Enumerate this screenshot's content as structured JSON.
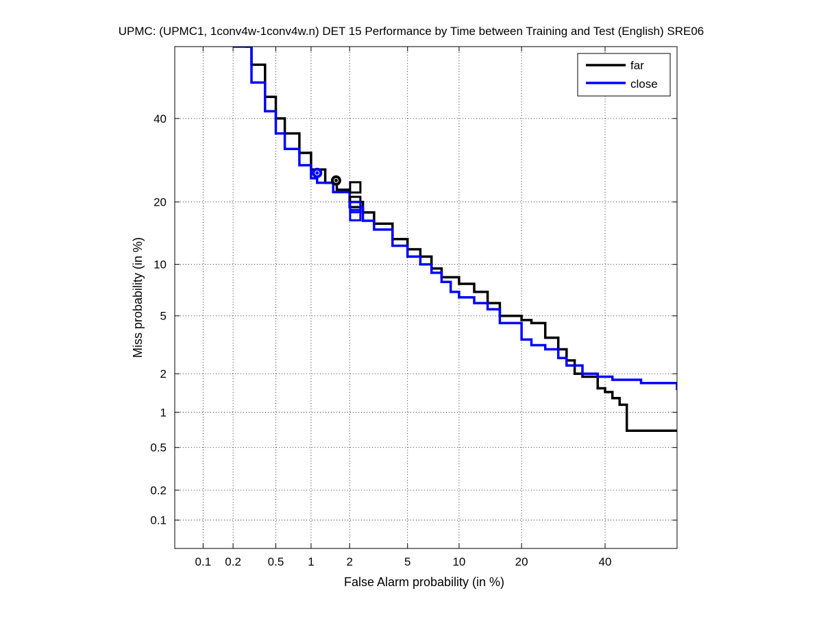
{
  "chart_data": {
    "type": "line",
    "subtype": "DET curve (normal-deviate scaled axes)",
    "title": "UPMC: (UPMC1, 1conv4w-1conv4w.n) DET 15 Performance by Time between Training and Test (English) SRE06",
    "xlabel": "False Alarm probability (in %)",
    "ylabel": "Miss probability (in %)",
    "x_scale": "normal-deviate (probit)",
    "y_scale": "normal-deviate (probit)",
    "xlim": [
      0.05,
      60
    ],
    "ylim": [
      0.05,
      60
    ],
    "x_ticks": [
      0.1,
      0.2,
      0.5,
      1,
      2,
      5,
      10,
      20,
      40
    ],
    "x_tick_labels": [
      "0.1",
      "0.2",
      "0.5",
      "1",
      "2",
      "5",
      "10",
      "20",
      "40"
    ],
    "y_ticks": [
      0.1,
      0.2,
      0.5,
      1,
      2,
      5,
      10,
      20,
      40
    ],
    "y_tick_labels": [
      "0.1",
      "0.2",
      "0.5",
      "1",
      "2",
      "5",
      "10",
      "20",
      "40"
    ],
    "grid": true,
    "legend_position": "top-right",
    "series": [
      {
        "name": "far",
        "color": "#000000",
        "x": [
          0.26,
          0.3,
          0.4,
          0.5,
          0.6,
          0.8,
          1.0,
          1.3,
          1.6,
          2.0,
          2.5,
          3.0,
          4.0,
          5.0,
          6.0,
          7.0,
          8.0,
          10.0,
          12.0,
          14.0,
          16.0,
          20.0,
          22.0,
          25.0,
          28.0,
          30.0,
          32.0,
          34.0,
          36.0,
          38.0,
          40.0,
          42.0,
          44.0,
          46.0,
          60.0
        ],
        "y": [
          60.0,
          55.0,
          46.0,
          40.0,
          36.0,
          31.0,
          27.0,
          24.0,
          22.5,
          20.0,
          18.0,
          16.0,
          13.5,
          12.0,
          11.0,
          9.5,
          8.5,
          7.8,
          7.0,
          6.0,
          5.0,
          4.7,
          4.5,
          3.6,
          3.0,
          2.5,
          2.0,
          1.9,
          1.9,
          1.55,
          1.45,
          1.3,
          1.15,
          0.7,
          0.7
        ]
      },
      {
        "name": "close",
        "color": "#0000ff",
        "x": [
          0.2,
          0.3,
          0.4,
          0.5,
          0.6,
          0.8,
          1.0,
          1.12,
          1.5,
          2.0,
          2.5,
          3.0,
          4.0,
          5.0,
          6.0,
          7.0,
          8.0,
          9.0,
          10.0,
          12.0,
          14.0,
          16.0,
          20.0,
          22.0,
          25.0,
          28.0,
          30.0,
          34.0,
          38.0,
          42.0,
          46.0,
          50.0,
          60.0
        ],
        "y": [
          60.0,
          50.0,
          42.0,
          36.0,
          32.0,
          28.0,
          25.0,
          24.0,
          22.0,
          19.0,
          16.5,
          15.0,
          12.5,
          11.0,
          10.0,
          9.0,
          8.0,
          7.0,
          6.5,
          6.0,
          5.5,
          4.5,
          3.5,
          3.2,
          3.0,
          2.6,
          2.3,
          2.0,
          1.9,
          1.8,
          1.8,
          1.7,
          1.5
        ]
      }
    ],
    "points": [
      {
        "series": "far",
        "marker": "circle",
        "x": 1.58,
        "y": 24.5
      },
      {
        "series": "close",
        "marker": "circle",
        "x": 1.12,
        "y": 26.2
      },
      {
        "series": "far",
        "marker": "square",
        "x": 2.2,
        "y": 23.0
      },
      {
        "series": "close",
        "marker": "square",
        "x": 2.2,
        "y": 17.5
      },
      {
        "series": "far",
        "marker": "square",
        "x": 2.2,
        "y": 20.0
      },
      {
        "series": "close",
        "marker": "square",
        "x": 2.2,
        "y": 19.0
      }
    ]
  }
}
